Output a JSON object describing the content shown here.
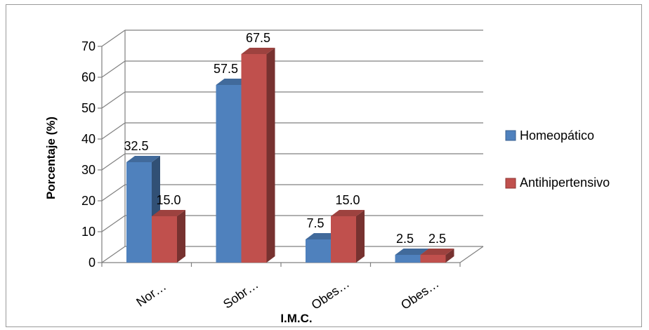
{
  "chart_data": {
    "type": "bar",
    "title": "",
    "xlabel": "I.M.C.",
    "ylabel": "Porcentaje (%)",
    "categories": [
      "Nor…",
      "Sobr…",
      "Obes…",
      "Obes…"
    ],
    "series": [
      {
        "name": "Homeopático",
        "values": [
          32.5,
          57.5,
          7.5,
          2.5
        ],
        "labels": [
          "32.5",
          "57.5",
          "7.5",
          "2.5"
        ],
        "color": "#4f81bd"
      },
      {
        "name": "Antihipertensivo",
        "values": [
          15.0,
          67.5,
          15.0,
          2.5
        ],
        "labels": [
          "15.0",
          "67.5",
          "15.0",
          "2.5"
        ],
        "color": "#c0504d"
      }
    ],
    "ylim": [
      0,
      70
    ],
    "yticks": [
      0,
      10,
      20,
      30,
      40,
      50,
      60,
      70
    ],
    "grid": true,
    "legend": "right",
    "style": "3d-clustered-column"
  }
}
